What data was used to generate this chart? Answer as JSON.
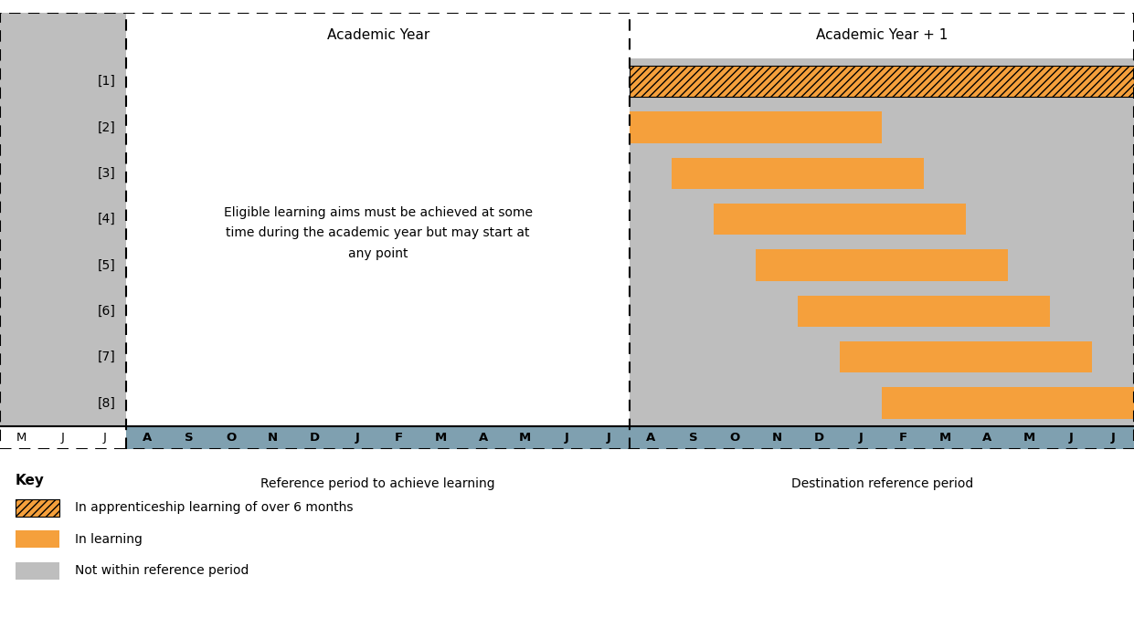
{
  "title_left": "Academic Year",
  "title_right": "Academic Year + 1",
  "months_left_gray": [
    "M",
    "J",
    "J"
  ],
  "months_academic": [
    "A",
    "S",
    "O",
    "N",
    "D",
    "J",
    "F",
    "M",
    "A",
    "M",
    "J",
    "J"
  ],
  "months_academic2": [
    "A",
    "S",
    "O",
    "N",
    "D",
    "J",
    "F",
    "M",
    "A",
    "M",
    "J",
    "J"
  ],
  "row_labels": [
    "[1]",
    "[2]",
    "[3]",
    "[4]",
    "[5]",
    "[6]",
    "[7]",
    "[8]"
  ],
  "annotation_text": "Eligible learning aims must be achieved at some\ntime during the academic year but may start at\nany point",
  "ref_period_label": "Reference period to achieve learning",
  "dest_period_label": "Destination reference period",
  "key_title": "Key",
  "key_items": [
    "In apprenticeship learning of over 6 months",
    "In learning",
    "Not within reference period"
  ],
  "orange_color": "#F5A03C",
  "gray_color": "#BEBEBE",
  "month_bar_color": "#7FA0B0",
  "n_rows": 8,
  "total_cols": 27,
  "bars": [
    {
      "row": 0,
      "start": 15,
      "end": 27,
      "type": "hatch"
    },
    {
      "row": 1,
      "start": 15,
      "end": 21,
      "type": "orange"
    },
    {
      "row": 2,
      "start": 16,
      "end": 22,
      "type": "orange"
    },
    {
      "row": 3,
      "start": 17,
      "end": 23,
      "type": "orange"
    },
    {
      "row": 4,
      "start": 18,
      "end": 24,
      "type": "orange"
    },
    {
      "row": 5,
      "start": 19,
      "end": 25,
      "type": "orange"
    },
    {
      "row": 6,
      "start": 20,
      "end": 26,
      "type": "orange"
    },
    {
      "row": 7,
      "start": 21,
      "end": 27,
      "type": "orange"
    }
  ]
}
